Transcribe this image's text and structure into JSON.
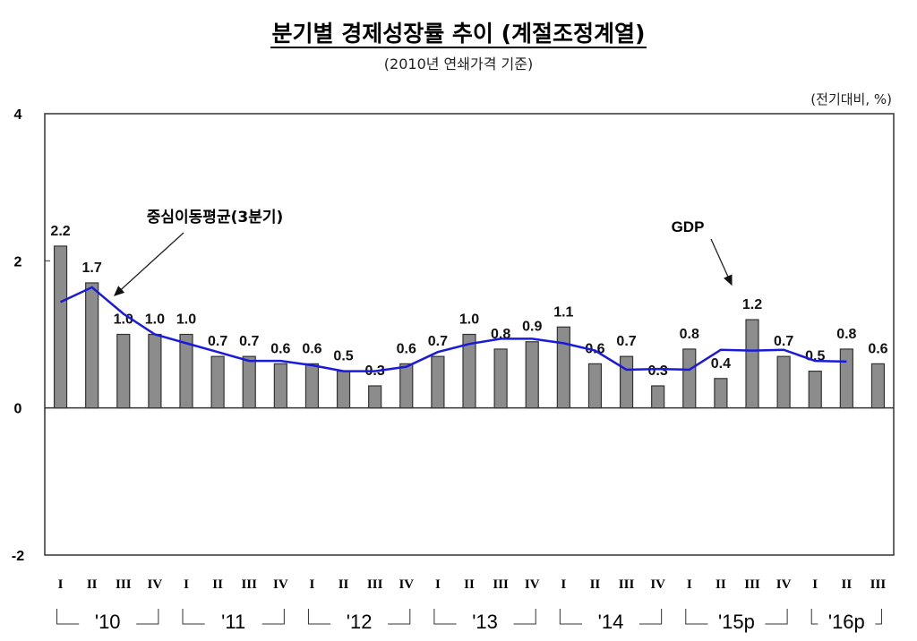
{
  "chart_data": {
    "type": "bar",
    "title": "분기별 경제성장률 추이 (계절조정계열)",
    "subtitle": "(2010년 연쇄가격 기준)",
    "unit_label": "(전기대비, %)",
    "ylim": [
      -2,
      4
    ],
    "yticks": [
      "4",
      "2",
      "0",
      "-2"
    ],
    "ytick_values": [
      4,
      2,
      0,
      -2
    ],
    "quarter_labels": [
      "I",
      "II",
      "III",
      "IV",
      "I",
      "II",
      "III",
      "IV",
      "I",
      "II",
      "III",
      "IV",
      "I",
      "II",
      "III",
      "IV",
      "I",
      "II",
      "III",
      "IV",
      "I",
      "II",
      "III",
      "IV",
      "I",
      "II",
      "III"
    ],
    "year_labels": [
      "'10",
      "'11",
      "'12",
      "'13",
      "'14",
      "'15p",
      "'16p"
    ],
    "series": [
      {
        "name": "GDP",
        "type": "bar",
        "color": "#8c8c8c",
        "values": [
          2.2,
          1.7,
          1.0,
          1.0,
          1.0,
          0.7,
          0.7,
          0.6,
          0.6,
          0.5,
          0.3,
          0.6,
          0.7,
          1.0,
          0.8,
          0.9,
          1.1,
          0.6,
          0.7,
          0.3,
          0.8,
          0.4,
          1.2,
          0.7,
          0.5,
          0.8,
          0.6
        ],
        "labels": [
          "2.2",
          "1.7",
          "1.0",
          "1.0",
          "1.0",
          "0.7",
          "0.7",
          "0.6",
          "0.6",
          "0.5",
          "0.3",
          "0.6",
          "0.7",
          "1.0",
          "0.8",
          "0.9",
          "1.1",
          "0.6",
          "0.7",
          "0.3",
          "0.8",
          "0.4",
          "1.2",
          "0.7",
          "0.5",
          "0.8",
          "0.6"
        ]
      },
      {
        "name": "중심이동평균(3분기)",
        "type": "line",
        "color": "#1a1adb",
        "values": [
          1.44,
          1.64,
          1.28,
          1.0,
          0.88,
          0.76,
          0.64,
          0.64,
          0.58,
          0.5,
          0.5,
          0.56,
          0.76,
          0.87,
          0.94,
          0.94,
          0.88,
          0.78,
          0.52,
          0.53,
          0.52,
          0.79,
          0.78,
          0.79,
          0.64,
          0.63
        ]
      }
    ],
    "annotations": {
      "line_label": "중심이동평균(3분기)",
      "bar_label": "GDP"
    }
  }
}
